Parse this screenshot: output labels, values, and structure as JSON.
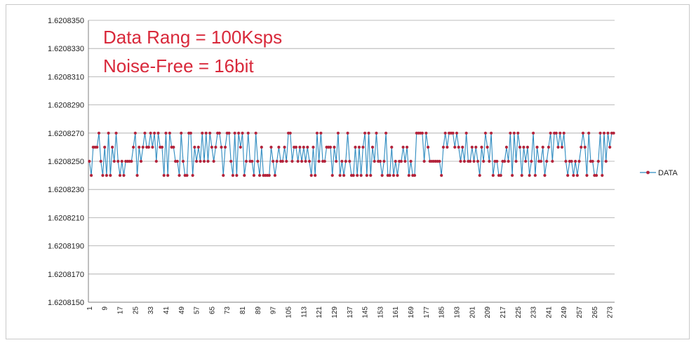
{
  "chart_data": {
    "type": "line",
    "title": "",
    "xlabel": "",
    "ylabel": "",
    "annotations": [
      "Data Rang = 100Ksps",
      "Noise-Free = 16bit"
    ],
    "annotation_color": "#d8283a",
    "x_tick_start": 1,
    "x_tick_step": 8,
    "x_tick_count": 35,
    "y_tick_labels": [
      "1.6208150",
      "1.6208170",
      "1.6208190",
      "1.6208210",
      "1.6208230",
      "1.6208250",
      "1.6208270",
      "1.6208290",
      "1.6208310",
      "1.6208330",
      "1.6208350"
    ],
    "ylim": [
      1.620815,
      1.620835
    ],
    "grid": true,
    "legend_position": "right",
    "series": [
      {
        "name": "DATA",
        "line_color": "#2e8bc0",
        "marker_color": "#b3243c",
        "values": [
          1.620825,
          1.620824,
          1.620826,
          1.620826,
          1.620826,
          1.620827,
          1.620825,
          1.620824,
          1.620826,
          1.620824,
          1.620827,
          1.620824,
          1.620826,
          1.620825,
          1.620827,
          1.620825,
          1.620824,
          1.620825,
          1.620824,
          1.620825,
          1.620825,
          1.620825,
          1.620825,
          1.620826,
          1.620827,
          1.620824,
          1.620826,
          1.620825,
          1.620826,
          1.620827,
          1.620826,
          1.620826,
          1.620827,
          1.620826,
          1.620827,
          1.620825,
          1.620827,
          1.620826,
          1.620826,
          1.620824,
          1.620827,
          1.620824,
          1.620827,
          1.620826,
          1.620826,
          1.620825,
          1.620825,
          1.620824,
          1.620827,
          1.620825,
          1.620824,
          1.620824,
          1.620827,
          1.620827,
          1.620824,
          1.620826,
          1.620825,
          1.620826,
          1.620825,
          1.620827,
          1.620825,
          1.620827,
          1.620825,
          1.620827,
          1.620826,
          1.620825,
          1.620826,
          1.620827,
          1.620827,
          1.620826,
          1.620824,
          1.620826,
          1.620827,
          1.620827,
          1.620825,
          1.620824,
          1.620827,
          1.620824,
          1.620827,
          1.620826,
          1.620827,
          1.620824,
          1.620825,
          1.620827,
          1.620825,
          1.620825,
          1.620824,
          1.620827,
          1.620825,
          1.620824,
          1.620826,
          1.620824,
          1.620824,
          1.620824,
          1.620824,
          1.620826,
          1.620825,
          1.620824,
          1.620825,
          1.620826,
          1.620825,
          1.620825,
          1.620826,
          1.620825,
          1.620827,
          1.620827,
          1.620825,
          1.620826,
          1.620826,
          1.620825,
          1.620826,
          1.620825,
          1.620826,
          1.620825,
          1.620826,
          1.620825,
          1.620824,
          1.620826,
          1.620824,
          1.620827,
          1.620825,
          1.620827,
          1.620825,
          1.620825,
          1.620826,
          1.620826,
          1.620826,
          1.620824,
          1.620826,
          1.620825,
          1.620827,
          1.620824,
          1.620825,
          1.620824,
          1.620825,
          1.620827,
          1.620825,
          1.620824,
          1.620824,
          1.620826,
          1.620824,
          1.620826,
          1.620824,
          1.620826,
          1.620827,
          1.620824,
          1.620827,
          1.620824,
          1.620826,
          1.620825,
          1.620827,
          1.620825,
          1.620825,
          1.620824,
          1.620825,
          1.620827,
          1.620824,
          1.620824,
          1.620826,
          1.620824,
          1.620825,
          1.620824,
          1.620825,
          1.620825,
          1.620826,
          1.620825,
          1.620826,
          1.620824,
          1.620825,
          1.620824,
          1.620824,
          1.620827,
          1.620827,
          1.620827,
          1.620827,
          1.620825,
          1.620827,
          1.620826,
          1.620825,
          1.620825,
          1.620825,
          1.620825,
          1.620825,
          1.620825,
          1.620824,
          1.620826,
          1.620827,
          1.620826,
          1.620827,
          1.620827,
          1.620827,
          1.620826,
          1.620827,
          1.620826,
          1.620825,
          1.620826,
          1.620825,
          1.620827,
          1.620825,
          1.620825,
          1.620826,
          1.620825,
          1.620826,
          1.620825,
          1.620824,
          1.620826,
          1.620825,
          1.620827,
          1.620826,
          1.620825,
          1.620827,
          1.620824,
          1.620825,
          1.620825,
          1.620824,
          1.620824,
          1.620825,
          1.620825,
          1.620826,
          1.620825,
          1.620827,
          1.620824,
          1.620827,
          1.620825,
          1.620827,
          1.620826,
          1.620824,
          1.620826,
          1.620825,
          1.620826,
          1.620824,
          1.620825,
          1.620827,
          1.620824,
          1.620826,
          1.620825,
          1.620825,
          1.620826,
          1.620824,
          1.620825,
          1.620826,
          1.620827,
          1.620825,
          1.620827,
          1.620827,
          1.620826,
          1.620827,
          1.620826,
          1.620827,
          1.620825,
          1.620824,
          1.620825,
          1.620825,
          1.620824,
          1.620825,
          1.620824,
          1.620825,
          1.620826,
          1.620827,
          1.620826,
          1.620824,
          1.620827,
          1.620825,
          1.620825,
          1.620824,
          1.620824,
          1.620825,
          1.620827,
          1.620824,
          1.620827,
          1.620825,
          1.620827,
          1.620826,
          1.620827,
          1.620827
        ]
      }
    ]
  }
}
